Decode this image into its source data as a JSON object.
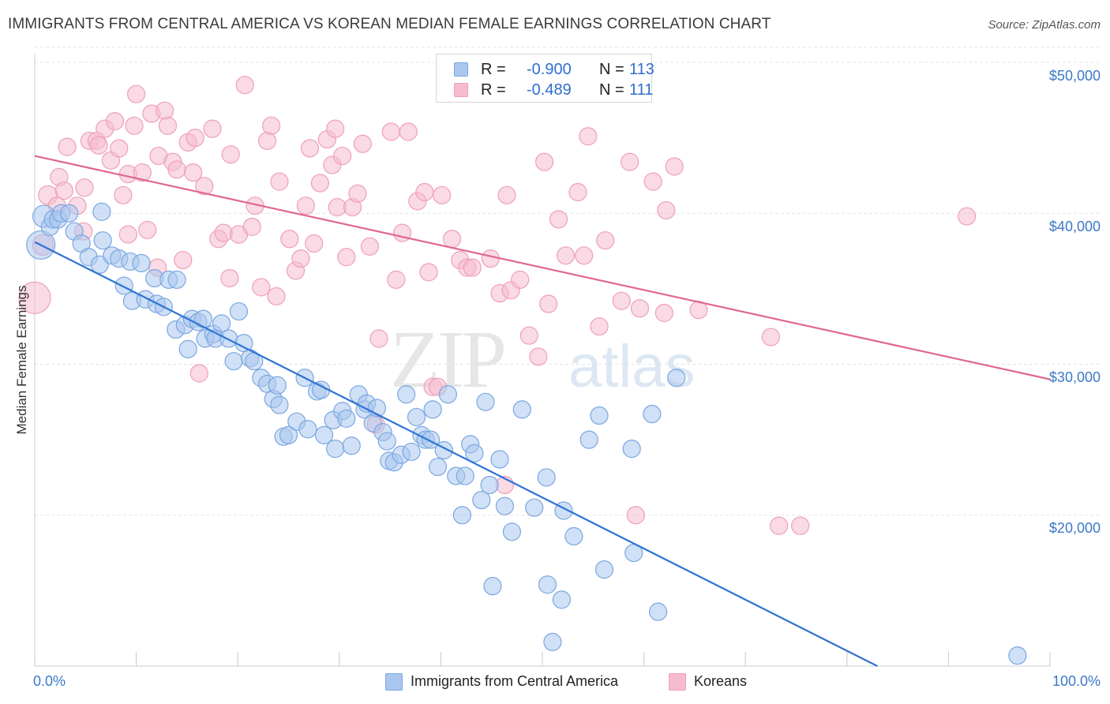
{
  "header": {
    "title": "IMMIGRANTS FROM CENTRAL AMERICA VS KOREAN MEDIAN FEMALE EARNINGS CORRELATION CHART",
    "source": "Source: ZipAtlas.com"
  },
  "watermark": {
    "zip": "ZIP",
    "atlas": "atlas"
  },
  "colors": {
    "blue_fill": "#a9c7ee",
    "blue_stroke": "#7ba7e0",
    "blue_line": "#2d74d4",
    "pink_fill": "#f6bccd",
    "pink_stroke": "#eea0b9",
    "pink_line": "#e06890",
    "tick_text": "#3b78c8",
    "grid": "#e4e4e4"
  },
  "legend_top": {
    "rows": [
      {
        "r_label": "R =",
        "r_value": "-0.900",
        "n_label": "N =",
        "n_value": "113"
      },
      {
        "r_label": "R =",
        "r_value": "-0.489",
        "n_label": "N =",
        "n_value": "111"
      }
    ]
  },
  "legend_bottom": {
    "items": [
      {
        "label": "Immigrants from Central America"
      },
      {
        "label": "Koreans"
      }
    ]
  },
  "chart_data": {
    "type": "scatter",
    "title": "IMMIGRANTS FROM CENTRAL AMERICA VS KOREAN MEDIAN FEMALE EARNINGS CORRELATION CHART",
    "xlabel": "",
    "ylabel": "Median Female Earnings",
    "xlim": [
      0,
      100
    ],
    "ylim": [
      10000,
      51000
    ],
    "x_tick_labels": [
      "0.0%",
      "100.0%"
    ],
    "y_ticks": [
      20000,
      30000,
      40000,
      50000
    ],
    "y_tick_labels": [
      "$20,000",
      "$30,000",
      "$40,000",
      "$50,000"
    ],
    "grid": true,
    "legend_position": "top-center",
    "series": [
      {
        "name": "Immigrants from Central America",
        "trend": {
          "x0": 0,
          "y0": 38100,
          "x1": 83,
          "y1": 10000
        },
        "points": [
          [
            0.6,
            37900,
            18
          ],
          [
            0.9,
            39800,
            14
          ],
          [
            1.5,
            39100,
            11
          ],
          [
            1.8,
            39600,
            11
          ],
          [
            2.3,
            39600,
            11
          ],
          [
            2.6,
            40000,
            11
          ],
          [
            3.4,
            40000,
            11
          ],
          [
            3.9,
            38800,
            11
          ],
          [
            4.6,
            38000,
            11
          ],
          [
            6.6,
            40100,
            11
          ],
          [
            6.7,
            38200,
            11
          ],
          [
            5.3,
            37100,
            11
          ],
          [
            6.4,
            36600,
            11
          ],
          [
            7.6,
            37200,
            11
          ],
          [
            8.3,
            37000,
            11
          ],
          [
            9.4,
            36800,
            11
          ],
          [
            10.5,
            36700,
            11
          ],
          [
            8.8,
            35200,
            11
          ],
          [
            9.6,
            34200,
            11
          ],
          [
            10.9,
            34300,
            11
          ],
          [
            11.8,
            35700,
            11
          ],
          [
            12.0,
            34000,
            11
          ],
          [
            12.7,
            33800,
            11
          ],
          [
            13.2,
            35600,
            11
          ],
          [
            14.0,
            35600,
            11
          ],
          [
            13.9,
            32300,
            11
          ],
          [
            14.8,
            32600,
            11
          ],
          [
            15.1,
            31000,
            11
          ],
          [
            15.5,
            33000,
            11
          ],
          [
            16.1,
            32800,
            11
          ],
          [
            16.6,
            33000,
            11
          ],
          [
            16.8,
            31700,
            11
          ],
          [
            17.6,
            32000,
            11
          ],
          [
            17.8,
            31700,
            11
          ],
          [
            18.4,
            32700,
            11
          ],
          [
            19.1,
            31700,
            11
          ],
          [
            19.6,
            30200,
            11
          ],
          [
            20.1,
            33500,
            11
          ],
          [
            20.6,
            31400,
            11
          ],
          [
            21.2,
            30400,
            11
          ],
          [
            21.6,
            30200,
            11
          ],
          [
            22.3,
            29100,
            11
          ],
          [
            22.9,
            28700,
            11
          ],
          [
            23.5,
            27700,
            11
          ],
          [
            23.9,
            28600,
            11
          ],
          [
            24.1,
            27300,
            11
          ],
          [
            24.5,
            25200,
            11
          ],
          [
            25.0,
            25300,
            11
          ],
          [
            25.8,
            26200,
            11
          ],
          [
            26.6,
            29100,
            11
          ],
          [
            26.9,
            25700,
            11
          ],
          [
            27.8,
            28200,
            11
          ],
          [
            28.2,
            28300,
            11
          ],
          [
            28.5,
            25300,
            11
          ],
          [
            29.4,
            26300,
            11
          ],
          [
            29.6,
            24400,
            11
          ],
          [
            30.3,
            26900,
            11
          ],
          [
            30.7,
            26400,
            11
          ],
          [
            31.2,
            24600,
            11
          ],
          [
            31.9,
            28000,
            11
          ],
          [
            32.5,
            27000,
            11
          ],
          [
            32.7,
            27400,
            11
          ],
          [
            33.3,
            26100,
            11
          ],
          [
            33.7,
            27100,
            11
          ],
          [
            34.3,
            25500,
            11
          ],
          [
            34.7,
            24900,
            11
          ],
          [
            34.9,
            23600,
            11
          ],
          [
            35.4,
            23500,
            11
          ],
          [
            36.1,
            24000,
            11
          ],
          [
            36.6,
            28000,
            11
          ],
          [
            37.1,
            24200,
            11
          ],
          [
            37.6,
            26500,
            11
          ],
          [
            38.1,
            25300,
            11
          ],
          [
            38.5,
            25000,
            11
          ],
          [
            39.0,
            25000,
            11
          ],
          [
            39.2,
            27000,
            11
          ],
          [
            39.7,
            23200,
            11
          ],
          [
            40.3,
            24300,
            11
          ],
          [
            40.7,
            28000,
            11
          ],
          [
            41.5,
            22600,
            11
          ],
          [
            42.1,
            20000,
            11
          ],
          [
            42.4,
            22600,
            11
          ],
          [
            42.9,
            24700,
            11
          ],
          [
            43.3,
            24100,
            11
          ],
          [
            44.0,
            21000,
            11
          ],
          [
            44.4,
            27500,
            11
          ],
          [
            44.8,
            22000,
            11
          ],
          [
            45.1,
            15300,
            11
          ],
          [
            45.8,
            23700,
            11
          ],
          [
            46.3,
            20600,
            11
          ],
          [
            47.0,
            18900,
            11
          ],
          [
            48.0,
            27000,
            11
          ],
          [
            49.2,
            20500,
            11
          ],
          [
            50.4,
            22500,
            11
          ],
          [
            50.5,
            15400,
            11
          ],
          [
            51.9,
            14400,
            11
          ],
          [
            52.1,
            20300,
            11
          ],
          [
            51.0,
            11600,
            11
          ],
          [
            53.1,
            18600,
            11
          ],
          [
            54.6,
            25000,
            11
          ],
          [
            55.6,
            26600,
            11
          ],
          [
            56.1,
            16400,
            11
          ],
          [
            58.8,
            24400,
            11
          ],
          [
            59.0,
            17500,
            11
          ],
          [
            60.8,
            26700,
            11
          ],
          [
            61.4,
            13600,
            11
          ],
          [
            63.2,
            29100,
            11
          ],
          [
            96.8,
            10700,
            11
          ]
        ]
      },
      {
        "name": "Koreans",
        "trend": {
          "x0": 0,
          "y0": 43800,
          "x1": 100,
          "y1": 29000
        },
        "points": [
          [
            0.0,
            34400,
            20
          ],
          [
            0.8,
            37900,
            13
          ],
          [
            1.3,
            41200,
            12
          ],
          [
            2.2,
            40500,
            11
          ],
          [
            2.4,
            42400,
            11
          ],
          [
            2.9,
            41500,
            11
          ],
          [
            3.2,
            44400,
            11
          ],
          [
            4.2,
            40500,
            11
          ],
          [
            4.8,
            38800,
            11
          ],
          [
            4.9,
            41700,
            11
          ],
          [
            5.4,
            44800,
            11
          ],
          [
            6.1,
            44800,
            11
          ],
          [
            6.3,
            44500,
            11
          ],
          [
            6.9,
            45600,
            11
          ],
          [
            7.5,
            43500,
            11
          ],
          [
            7.9,
            46100,
            11
          ],
          [
            8.3,
            44300,
            11
          ],
          [
            8.7,
            41200,
            11
          ],
          [
            9.2,
            42600,
            11
          ],
          [
            9.8,
            45800,
            11
          ],
          [
            9.2,
            38600,
            11
          ],
          [
            10.0,
            47900,
            11
          ],
          [
            10.6,
            42700,
            11
          ],
          [
            11.1,
            38900,
            11
          ],
          [
            11.5,
            46600,
            11
          ],
          [
            12.1,
            36400,
            11
          ],
          [
            12.2,
            43800,
            11
          ],
          [
            12.8,
            46800,
            11
          ],
          [
            13.1,
            45800,
            11
          ],
          [
            13.6,
            43400,
            11
          ],
          [
            14.0,
            42900,
            11
          ],
          [
            14.6,
            36900,
            11
          ],
          [
            15.1,
            44700,
            11
          ],
          [
            15.6,
            42700,
            11
          ],
          [
            15.8,
            45000,
            11
          ],
          [
            16.2,
            29400,
            11
          ],
          [
            16.7,
            41800,
            11
          ],
          [
            17.5,
            45600,
            11
          ],
          [
            18.1,
            38300,
            11
          ],
          [
            18.6,
            38700,
            11
          ],
          [
            19.2,
            35700,
            11
          ],
          [
            19.3,
            43900,
            11
          ],
          [
            20.1,
            38600,
            11
          ],
          [
            20.7,
            48500,
            11
          ],
          [
            21.4,
            39100,
            11
          ],
          [
            21.7,
            40500,
            11
          ],
          [
            22.3,
            35100,
            11
          ],
          [
            22.9,
            44800,
            11
          ],
          [
            23.3,
            45800,
            11
          ],
          [
            23.8,
            34500,
            11
          ],
          [
            24.1,
            42100,
            11
          ],
          [
            25.1,
            38300,
            11
          ],
          [
            25.7,
            36200,
            11
          ],
          [
            26.2,
            37000,
            11
          ],
          [
            26.7,
            40500,
            11
          ],
          [
            27.1,
            44300,
            11
          ],
          [
            27.5,
            38000,
            11
          ],
          [
            28.1,
            42000,
            11
          ],
          [
            28.8,
            44900,
            11
          ],
          [
            29.3,
            43200,
            11
          ],
          [
            29.6,
            45600,
            11
          ],
          [
            29.8,
            40400,
            11
          ],
          [
            30.3,
            43800,
            11
          ],
          [
            30.7,
            37100,
            11
          ],
          [
            31.3,
            40400,
            11
          ],
          [
            31.8,
            41300,
            11
          ],
          [
            32.3,
            44600,
            11
          ],
          [
            33.0,
            37800,
            11
          ],
          [
            33.6,
            26000,
            11
          ],
          [
            33.9,
            31700,
            11
          ],
          [
            35.1,
            45400,
            11
          ],
          [
            35.6,
            35600,
            11
          ],
          [
            36.2,
            38700,
            11
          ],
          [
            36.8,
            45400,
            11
          ],
          [
            37.7,
            40800,
            11
          ],
          [
            38.4,
            41400,
            11
          ],
          [
            38.8,
            36100,
            11
          ],
          [
            39.2,
            28500,
            11
          ],
          [
            39.7,
            28500,
            11
          ],
          [
            40.1,
            41200,
            11
          ],
          [
            41.1,
            38300,
            11
          ],
          [
            41.9,
            36900,
            11
          ],
          [
            42.6,
            36400,
            11
          ],
          [
            43.1,
            36400,
            11
          ],
          [
            44.9,
            37000,
            11
          ],
          [
            45.8,
            34700,
            11
          ],
          [
            46.5,
            41200,
            11
          ],
          [
            46.9,
            34900,
            11
          ],
          [
            47.8,
            35600,
            11
          ],
          [
            48.7,
            31900,
            11
          ],
          [
            49.6,
            30500,
            11
          ],
          [
            50.2,
            43400,
            11
          ],
          [
            50.6,
            34000,
            11
          ],
          [
            51.6,
            39600,
            11
          ],
          [
            52.3,
            37200,
            11
          ],
          [
            53.5,
            41400,
            11
          ],
          [
            54.1,
            37200,
            11
          ],
          [
            54.5,
            45100,
            11
          ],
          [
            55.6,
            32500,
            11
          ],
          [
            56.2,
            38200,
            11
          ],
          [
            57.8,
            34200,
            11
          ],
          [
            58.6,
            43400,
            11
          ],
          [
            59.2,
            20000,
            11
          ],
          [
            59.6,
            33700,
            11
          ],
          [
            60.9,
            42100,
            11
          ],
          [
            62.0,
            33400,
            11
          ],
          [
            62.2,
            40200,
            11
          ],
          [
            63.0,
            43100,
            11
          ],
          [
            65.4,
            33600,
            11
          ],
          [
            72.5,
            31800,
            11
          ],
          [
            73.3,
            19300,
            11
          ],
          [
            75.4,
            19300,
            11
          ],
          [
            91.8,
            39800,
            11
          ],
          [
            46.3,
            22000,
            11
          ]
        ]
      }
    ]
  },
  "axis_labels": {
    "ylabel": "Median Female Earnings",
    "x_left": "0.0%",
    "x_right": "100.0%",
    "y_ticks": [
      "$50,000",
      "$40,000",
      "$30,000",
      "$20,000"
    ]
  }
}
